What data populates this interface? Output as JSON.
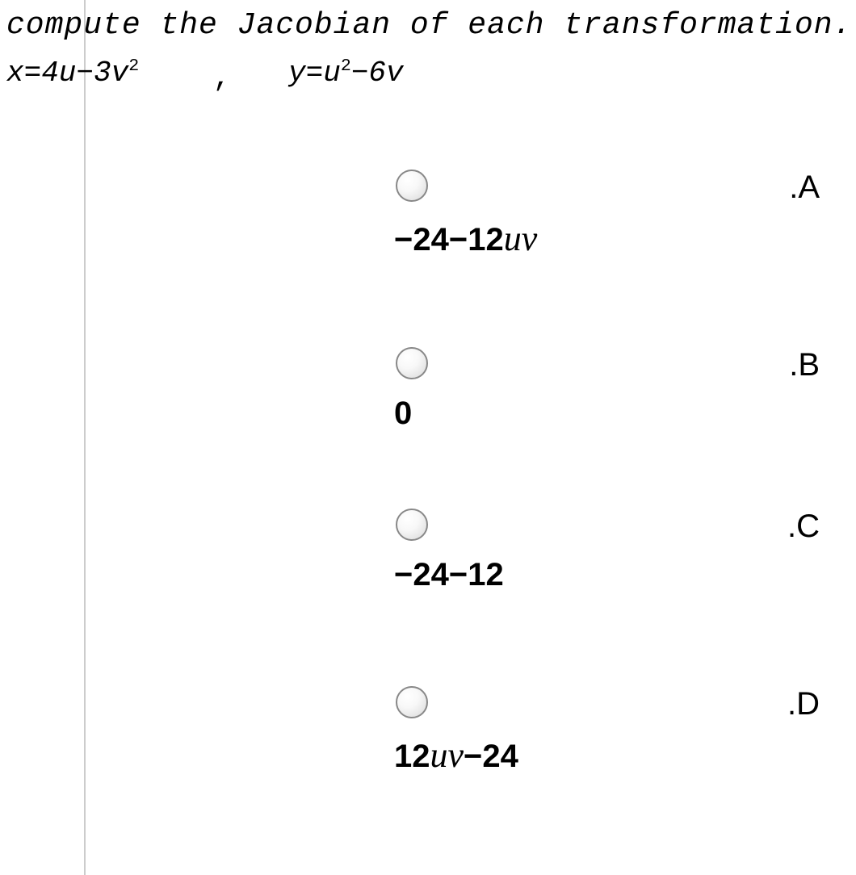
{
  "question": {
    "prompt": "compute the Jacobian of each transformation.",
    "equation_x_html": "x=4u−3v<sup>2</sup>",
    "equation_comma": ",",
    "equation_y_html": "y=u<sup>2</sup>−6v"
  },
  "options": [
    {
      "label": ".A",
      "answer_html": "−24−12<span class='ital'>uv</span>"
    },
    {
      "label": ".B",
      "answer_html": "0"
    },
    {
      "label": ".C",
      "answer_html": "−24−12"
    },
    {
      "label": ".D",
      "answer_html": "12<span class='ital'>uv</span>−24"
    }
  ],
  "style": {
    "background_color": "#ffffff",
    "text_color": "#000000",
    "line_color": "#cccccc",
    "radio_border": "#888888",
    "prompt_fontsize": 38,
    "equation_fontsize": 36,
    "option_fontsize": 40
  }
}
